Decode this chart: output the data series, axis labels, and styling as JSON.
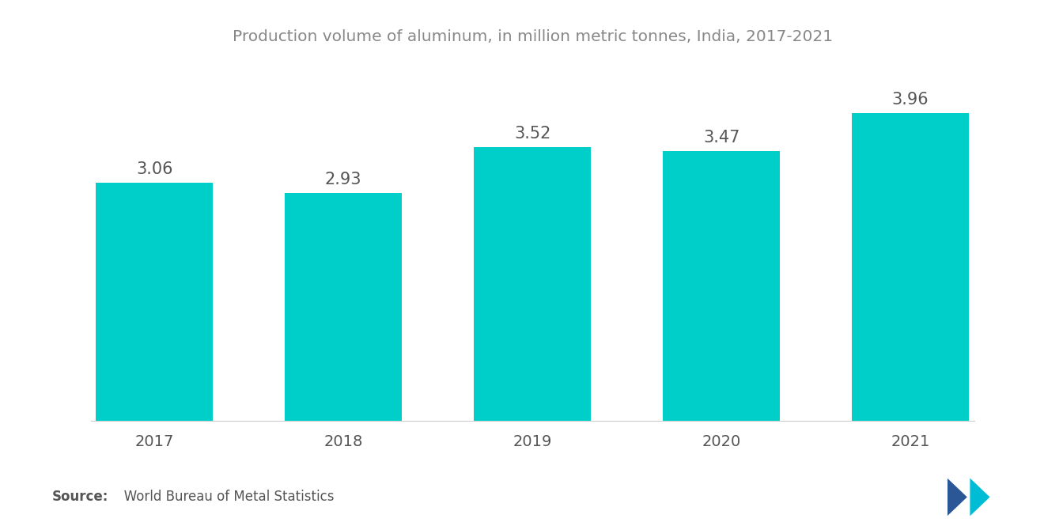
{
  "title": "Production volume of aluminum, in million metric tonnes, India, 2017-2021",
  "categories": [
    "2017",
    "2018",
    "2019",
    "2020",
    "2021"
  ],
  "values": [
    3.06,
    2.93,
    3.52,
    3.47,
    3.96
  ],
  "bar_color": "#00CEC9",
  "label_color": "#555555",
  "title_color": "#888888",
  "background_color": "#ffffff",
  "source_bold": "Source:",
  "source_text": "   World Bureau of Metal Statistics",
  "bar_width": 0.62,
  "ylim": [
    0,
    4.6
  ],
  "title_fontsize": 14.5,
  "label_fontsize": 15,
  "tick_fontsize": 14,
  "source_fontsize": 12
}
